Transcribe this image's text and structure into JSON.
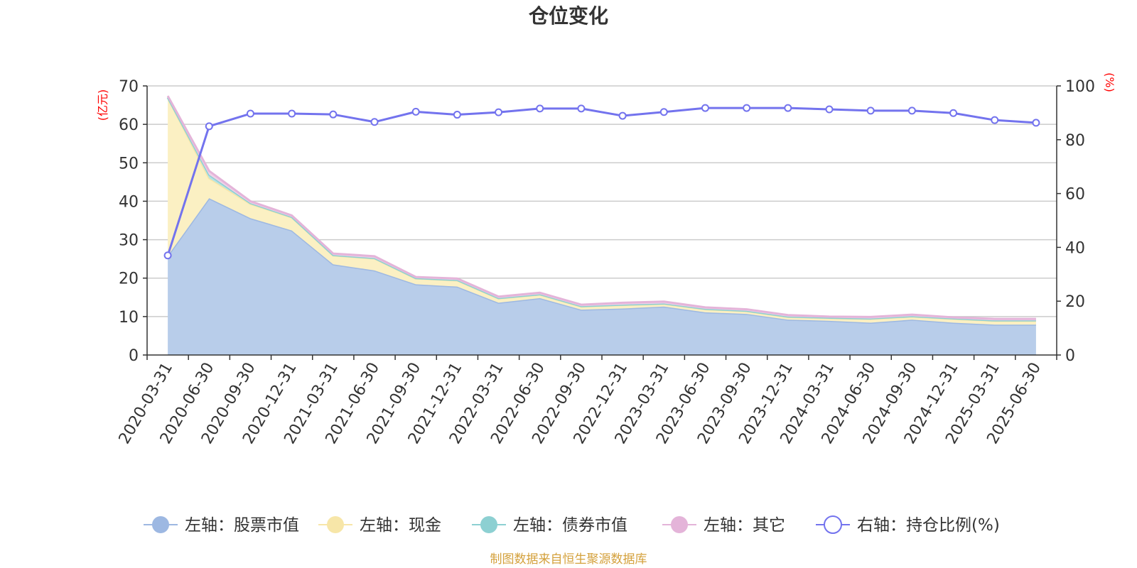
{
  "chart_data": {
    "type": "area",
    "title": "仓位变化",
    "left_axis": {
      "unit": "(亿元)",
      "ylim": [
        0,
        70
      ],
      "ticks": [
        "0",
        "10",
        "20",
        "30",
        "40",
        "50",
        "60",
        "70"
      ]
    },
    "right_axis": {
      "unit": "(%)",
      "ylim": [
        0,
        100
      ],
      "ticks": [
        "0",
        "20",
        "40",
        "60",
        "80",
        "100"
      ]
    },
    "categories": [
      "2020-03-31",
      "2020-06-30",
      "2020-09-30",
      "2020-12-31",
      "2021-03-31",
      "2021-06-30",
      "2021-09-30",
      "2021-12-31",
      "2022-03-31",
      "2022-06-30",
      "2022-09-30",
      "2022-12-31",
      "2023-03-31",
      "2023-06-30",
      "2023-09-30",
      "2023-12-31",
      "2024-03-31",
      "2024-06-30",
      "2024-09-30",
      "2024-12-31",
      "2025-03-31",
      "2025-06-30"
    ],
    "grid": true,
    "legend_position": "bottom",
    "series": [
      {
        "name": "左轴：股票市值",
        "axis": "left",
        "color": "#9db8e2",
        "fill": "#b8cdea",
        "values": [
          25.8,
          40.8,
          35.6,
          32.4,
          23.6,
          22.0,
          18.4,
          17.8,
          13.6,
          14.8,
          11.8,
          12.1,
          12.6,
          11.1,
          10.7,
          9.2,
          8.9,
          8.4,
          9.2,
          8.4,
          7.9,
          7.9
        ]
      },
      {
        "name": "左轴：现金",
        "axis": "left",
        "color": "#f7e6a8",
        "fill": "#fbf0c3",
        "values": [
          41.2,
          5.2,
          3.7,
          3.4,
          2.3,
          3.1,
          1.5,
          1.6,
          1.1,
          0.9,
          0.8,
          0.9,
          0.7,
          0.8,
          0.7,
          0.7,
          0.7,
          1.0,
          0.8,
          1.0,
          1.0,
          1.0
        ]
      },
      {
        "name": "左轴：债券市值",
        "axis": "left",
        "color": "#8dd0d2",
        "fill": "#b6e2e4",
        "values": [
          0.0,
          0.9,
          0.2,
          0.1,
          0.1,
          0.1,
          0.1,
          0.1,
          0.1,
          0.1,
          0.1,
          0.1,
          0.1,
          0.1,
          0.1,
          0.1,
          0.1,
          0.1,
          0.1,
          0.1,
          0.1,
          0.1
        ]
      },
      {
        "name": "左轴：其它",
        "axis": "left",
        "color": "#e4b4d9",
        "fill": "#efd1e8",
        "values": [
          0.4,
          1.0,
          0.5,
          0.4,
          0.4,
          0.5,
          0.3,
          0.4,
          0.4,
          0.4,
          0.4,
          0.5,
          0.5,
          0.4,
          0.4,
          0.4,
          0.3,
          0.4,
          0.4,
          0.3,
          0.4,
          0.4
        ]
      },
      {
        "name": "右轴：持仓比例(%)",
        "axis": "right",
        "color": "#7373ee",
        "values": [
          37.0,
          85.0,
          89.7,
          89.7,
          89.4,
          86.6,
          90.4,
          89.3,
          90.2,
          91.6,
          91.6,
          88.9,
          90.3,
          91.8,
          91.8,
          91.8,
          91.3,
          90.8,
          90.8,
          89.9,
          87.3,
          86.3
        ]
      }
    ],
    "source": "制图数据来自恒生聚源数据库"
  }
}
